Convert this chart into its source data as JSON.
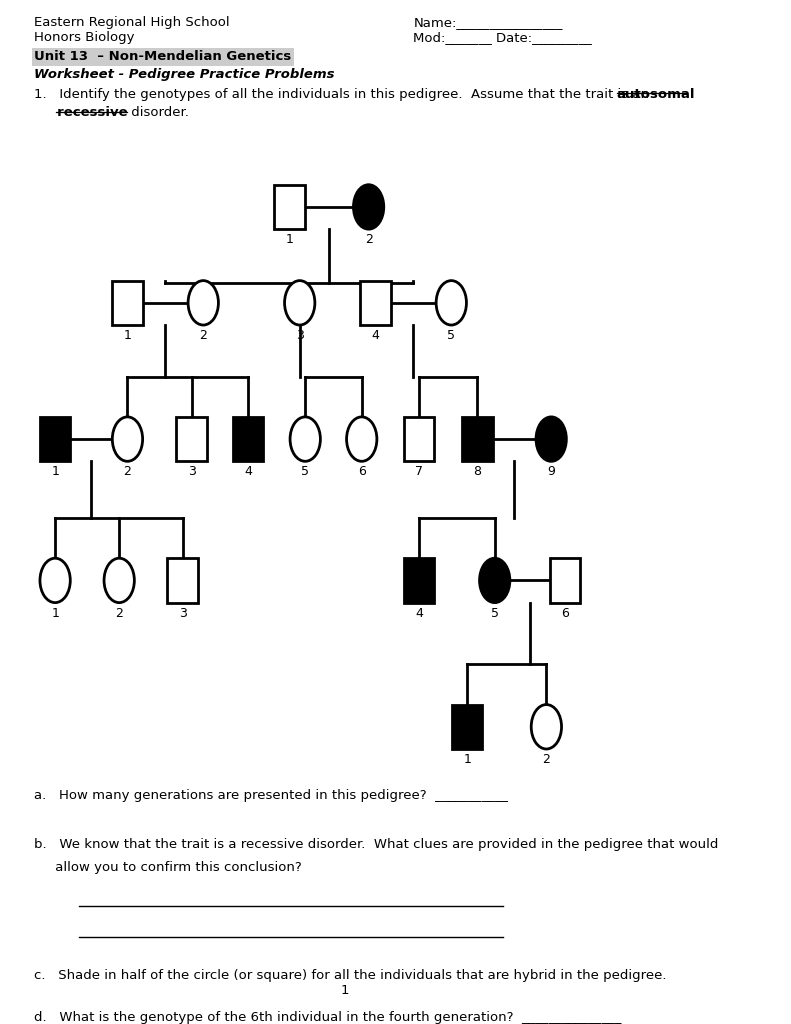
{
  "title_left1": "Eastern Regional High School",
  "title_left2": "Honors Biology",
  "title_right1": "Name:________________",
  "title_right2": "Mod:_______ Date:_________",
  "unit_line": "Unit 13  – Non-Mendelian Genetics",
  "worksheet_line": "Worksheet - Pedigree Practice Problems",
  "q_a": "a.   How many generations are presented in this pedigree?  ___________",
  "q_b1": "b.   We know that the trait is a recessive disorder.  What clues are provided in the pedigree that would",
  "q_b2": "     allow you to confirm this conclusion?",
  "q_c": "c.   Shade in half of the circle (or square) for all the individuals that are hybrid in the pedigree.",
  "q_d": "d.   What is the genotype of the 6th individual in the fourth generation?  _______________",
  "page_num": "1",
  "bg_color": "#ffffff",
  "text_color": "#000000",
  "symbol_size": 0.022,
  "lw": 2.0
}
